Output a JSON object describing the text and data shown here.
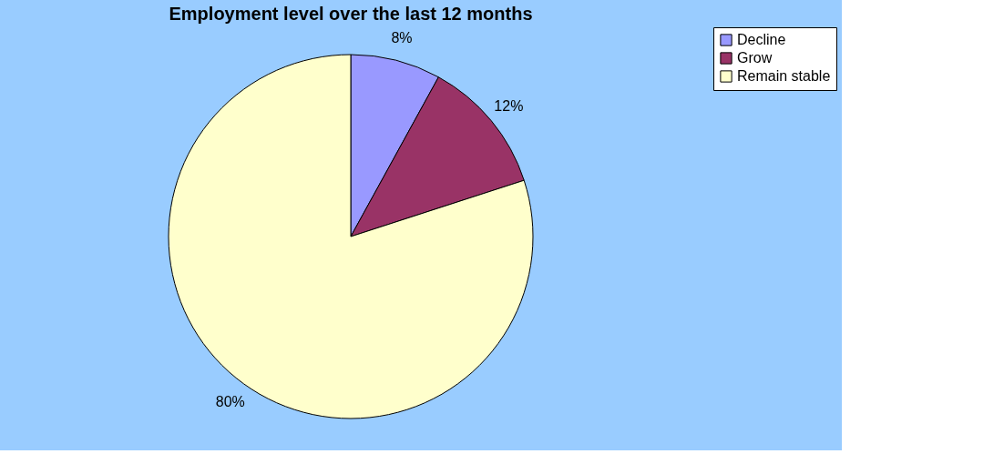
{
  "chart_data": {
    "type": "pie",
    "title": "Employment level over the last 12 months",
    "categories": [
      "Decline",
      "Grow",
      "Remain stable"
    ],
    "values": [
      8,
      12,
      80
    ],
    "colors": [
      "#9999ff",
      "#993366",
      "#ffffcc"
    ],
    "value_labels": [
      "8%",
      "12%",
      "80%"
    ],
    "legend": "right"
  }
}
